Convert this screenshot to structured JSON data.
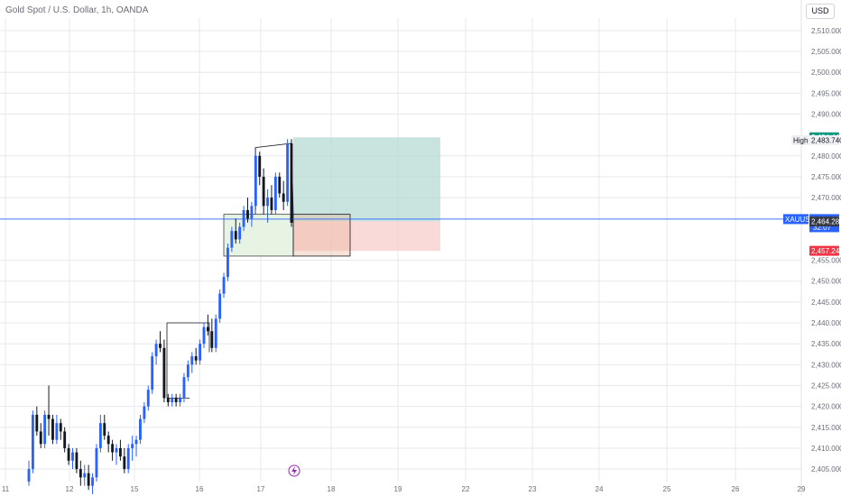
{
  "header": {
    "title": "Gold Spot / U.S. Dollar, 1h, OANDA",
    "currency": "USD"
  },
  "colors": {
    "up": "#2962ff",
    "down": "#131722",
    "grid": "#e6e8ee",
    "axis_text": "#6a6d78",
    "current_line": "#2962ff",
    "profit_fill": "#b2d8d2",
    "loss_fill": "#f8c9c9",
    "tp_tag": "#089981",
    "sl_tag": "#f23645",
    "entry_tag": "#363a45",
    "symbol_tag": "#2962ff",
    "alert_icon": "#9c27b0"
  },
  "chart_data": {
    "type": "candlestick",
    "symbol": "XAUUSD",
    "timeframe": "1h",
    "x_ticks": [
      "11",
      "12",
      "15",
      "16",
      "17",
      "18",
      "19",
      "22",
      "23",
      "24",
      "25",
      "26",
      "29"
    ],
    "y_ticks": [
      "2,510.000",
      "2,505.000",
      "2,500.000",
      "2,495.000",
      "2,490.000",
      "2,480.000",
      "2,475.000",
      "2,470.000",
      "2,455.000",
      "2,450.000",
      "2,445.000",
      "2,440.000",
      "2,435.000",
      "2,430.000",
      "2,425.000",
      "2,420.000",
      "2,415.000",
      "2,410.000",
      "2,405.000"
    ],
    "ylim": [
      2402,
      2513
    ],
    "last_price": "2,464.855",
    "countdown": "32:07",
    "high_label": "High",
    "high_value": "2,483.740",
    "take_profit": "2,484.446",
    "entry": "2,464.283",
    "stop_loss": "2,457.245",
    "ohlc": [
      [
        2402,
        2407,
        2401,
        2405
      ],
      [
        2405,
        2419,
        2404,
        2418
      ],
      [
        2418,
        2420,
        2413,
        2414
      ],
      [
        2414,
        2416,
        2410,
        2411
      ],
      [
        2411,
        2419,
        2410,
        2418
      ],
      [
        2418,
        2425,
        2413,
        2417
      ],
      [
        2417,
        2418,
        2411,
        2412
      ],
      [
        2412,
        2418,
        2411,
        2416
      ],
      [
        2416,
        2417,
        2412,
        2414
      ],
      [
        2414,
        2415,
        2409,
        2410
      ],
      [
        2410,
        2411,
        2406,
        2407
      ],
      [
        2407,
        2410,
        2405,
        2409
      ],
      [
        2409,
        2410,
        2404,
        2405
      ],
      [
        2405,
        2407,
        2401,
        2403
      ],
      [
        2403,
        2406,
        2401,
        2404
      ],
      [
        2404,
        2406,
        2400,
        2401
      ],
      [
        2401,
        2404,
        2399,
        2403
      ],
      [
        2403,
        2411,
        2402,
        2410
      ],
      [
        2410,
        2418,
        2409,
        2416
      ],
      [
        2416,
        2418,
        2412,
        2413
      ],
      [
        2413,
        2414,
        2409,
        2411
      ],
      [
        2411,
        2412,
        2407,
        2409
      ],
      [
        2409,
        2411,
        2406,
        2410
      ],
      [
        2410,
        2412,
        2407,
        2408
      ],
      [
        2408,
        2410,
        2404,
        2405
      ],
      [
        2405,
        2411,
        2404,
        2410
      ],
      [
        2410,
        2413,
        2407,
        2411
      ],
      [
        2411,
        2413,
        2408,
        2412
      ],
      [
        2412,
        2418,
        2411,
        2417
      ],
      [
        2417,
        2421,
        2416,
        2420
      ],
      [
        2420,
        2425,
        2419,
        2424
      ],
      [
        2424,
        2433,
        2423,
        2432
      ],
      [
        2432,
        2436,
        2430,
        2435
      ],
      [
        2435,
        2438,
        2433,
        2434
      ],
      [
        2434,
        2436,
        2421,
        2422
      ],
      [
        2422,
        2423,
        2420,
        2421
      ],
      [
        2421,
        2423,
        2420,
        2422
      ],
      [
        2422,
        2423,
        2420,
        2421
      ],
      [
        2421,
        2423,
        2420,
        2422
      ],
      [
        2422,
        2428,
        2421,
        2427
      ],
      [
        2427,
        2431,
        2426,
        2430
      ],
      [
        2430,
        2433,
        2428,
        2432
      ],
      [
        2432,
        2434,
        2430,
        2431
      ],
      [
        2431,
        2436,
        2430,
        2435
      ],
      [
        2435,
        2440,
        2434,
        2439
      ],
      [
        2439,
        2442,
        2437,
        2438
      ],
      [
        2438,
        2441,
        2433,
        2434
      ],
      [
        2434,
        2442,
        2433,
        2441
      ],
      [
        2441,
        2448,
        2440,
        2447
      ],
      [
        2447,
        2452,
        2446,
        2451
      ],
      [
        2451,
        2459,
        2450,
        2458
      ],
      [
        2458,
        2463,
        2457,
        2462
      ],
      [
        2462,
        2465,
        2459,
        2460
      ],
      [
        2460,
        2464,
        2459,
        2463
      ],
      [
        2463,
        2468,
        2462,
        2467
      ],
      [
        2467,
        2470,
        2464,
        2465
      ],
      [
        2465,
        2469,
        2463,
        2468
      ],
      [
        2468,
        2482,
        2467,
        2480
      ],
      [
        2480,
        2481,
        2473,
        2475
      ],
      [
        2475,
        2477,
        2466,
        2468
      ],
      [
        2468,
        2472,
        2464,
        2470
      ],
      [
        2470,
        2473,
        2466,
        2467
      ],
      [
        2467,
        2476,
        2466,
        2475
      ],
      [
        2475,
        2476,
        2470,
        2471
      ],
      [
        2471,
        2474,
        2467,
        2469
      ],
      [
        2469,
        2484,
        2468,
        2483
      ],
      [
        2483,
        2484,
        2463,
        2464
      ]
    ]
  },
  "markers": {
    "alert_icon": "lightning-icon"
  }
}
